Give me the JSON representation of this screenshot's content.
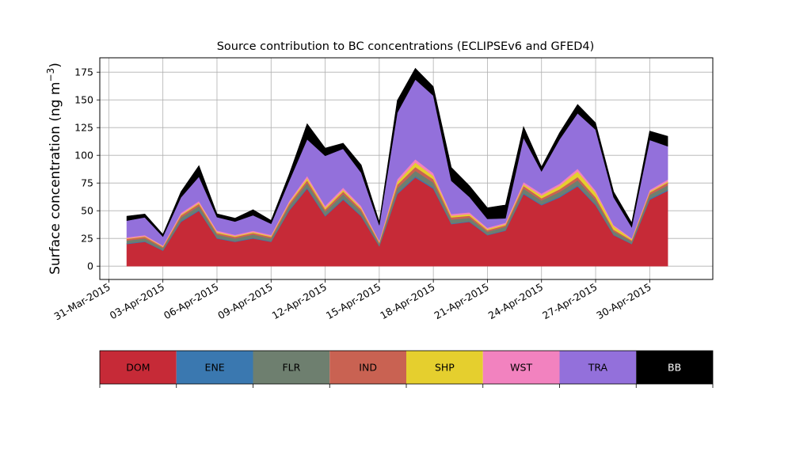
{
  "chart_data": {
    "type": "area",
    "stacked": true,
    "title": "Source contribution to BC concentrations (ECLIPSEv6 and GFED4)",
    "ylabel": "Surface concentration (ng m$^{-3}$)",
    "ylabel_main": "Surface concentration (ng m",
    "ylabel_sup": "−3",
    "ylabel_close": ")",
    "xlabel": "",
    "xlim": [
      "2015-03-30T12:00",
      "2015-05-03T12:00"
    ],
    "ylim": [
      -12,
      188
    ],
    "grid": true,
    "x_ticks": [
      "31-Mar-2015",
      "03-Apr-2015",
      "06-Apr-2015",
      "09-Apr-2015",
      "12-Apr-2015",
      "15-Apr-2015",
      "18-Apr-2015",
      "21-Apr-2015",
      "24-Apr-2015",
      "27-Apr-2015",
      "30-Apr-2015"
    ],
    "y_ticks": [
      "0",
      "25",
      "50",
      "75",
      "100",
      "125",
      "150",
      "175"
    ],
    "y_tick_values": [
      0,
      25,
      50,
      75,
      100,
      125,
      150,
      175
    ],
    "x": [
      "2015-04-01",
      "2015-04-02",
      "2015-04-03",
      "2015-04-04",
      "2015-04-05",
      "2015-04-06",
      "2015-04-07",
      "2015-04-08",
      "2015-04-09",
      "2015-04-10",
      "2015-04-11",
      "2015-04-12",
      "2015-04-13",
      "2015-04-14",
      "2015-04-15",
      "2015-04-16",
      "2015-04-17",
      "2015-04-18",
      "2015-04-19",
      "2015-04-20",
      "2015-04-21",
      "2015-04-22",
      "2015-04-23",
      "2015-04-24",
      "2015-04-25",
      "2015-04-26",
      "2015-04-27",
      "2015-04-28",
      "2015-04-29",
      "2015-04-30",
      "2015-05-01"
    ],
    "series": [
      {
        "name": "DOM",
        "color": "#c62a37",
        "values": [
          20,
          22,
          14,
          40,
          50,
          25,
          22,
          25,
          22,
          50,
          70,
          45,
          60,
          45,
          18,
          65,
          80,
          70,
          38,
          40,
          28,
          32,
          65,
          55,
          62,
          72,
          55,
          28,
          20,
          60,
          68
        ]
      },
      {
        "name": "ENE",
        "color": "#3a78b0",
        "values": [
          0.6,
          0.6,
          0.4,
          0.8,
          0.8,
          0.5,
          0.5,
          0.5,
          0.5,
          0.8,
          1.0,
          0.8,
          0.9,
          0.8,
          0.4,
          1.0,
          1.0,
          1.0,
          0.6,
          0.6,
          0.5,
          0.5,
          0.9,
          0.8,
          0.9,
          1.0,
          0.8,
          0.5,
          0.4,
          0.9,
          0.9
        ]
      },
      {
        "name": "FLR",
        "color": "#6e7f6f",
        "values": [
          2.5,
          2.5,
          2.0,
          3.0,
          3.5,
          3.0,
          2.5,
          3.0,
          2.5,
          3.5,
          4.0,
          3.5,
          4.0,
          3.5,
          2.0,
          4.5,
          5.0,
          4.5,
          3.5,
          3.0,
          2.5,
          3.0,
          4.0,
          3.5,
          4.0,
          4.5,
          4.0,
          3.0,
          2.0,
          3.5,
          4.0
        ]
      },
      {
        "name": "IND",
        "color": "#c96252",
        "values": [
          1.5,
          1.5,
          1.0,
          2.0,
          2.0,
          1.5,
          1.5,
          1.5,
          1.5,
          2.0,
          2.5,
          2.0,
          2.5,
          2.0,
          1.0,
          3.0,
          3.5,
          3.0,
          2.0,
          2.0,
          1.5,
          1.5,
          2.5,
          2.0,
          2.5,
          3.0,
          2.5,
          1.5,
          1.0,
          2.0,
          2.5
        ]
      },
      {
        "name": "SHP",
        "color": "#e5cf2e",
        "values": [
          0.5,
          0.5,
          0.5,
          0.8,
          1.0,
          1.0,
          0.8,
          0.8,
          0.8,
          1.0,
          2.0,
          1.5,
          1.5,
          1.2,
          0.8,
          2.5,
          4.0,
          3.0,
          1.5,
          1.5,
          1.0,
          1.0,
          1.5,
          2.5,
          3.0,
          5.0,
          4.0,
          3.0,
          1.0,
          1.0,
          1.0
        ]
      },
      {
        "name": "WST",
        "color": "#f282bf",
        "values": [
          1.0,
          1.0,
          0.8,
          1.5,
          1.5,
          1.2,
          1.0,
          1.2,
          1.0,
          1.5,
          2.0,
          1.8,
          2.0,
          1.8,
          0.8,
          2.5,
          3.0,
          2.5,
          1.5,
          1.5,
          1.2,
          1.2,
          2.0,
          1.8,
          2.0,
          2.5,
          2.0,
          1.2,
          0.8,
          1.5,
          1.8
        ]
      },
      {
        "name": "TRA",
        "color": "#9370db",
        "values": [
          15,
          16,
          8,
          14,
          22,
          12,
          12,
          14,
          10,
          18,
          33,
          45,
          35,
          30,
          14,
          60,
          72,
          70,
          30,
          14,
          8,
          4,
          40,
          20,
          40,
          50,
          55,
          25,
          10,
          45,
          30
        ]
      },
      {
        "name": "BB",
        "color": "#000000",
        "values": [
          4,
          3,
          2,
          5,
          10,
          3,
          3,
          5,
          3,
          6,
          14,
          7,
          5,
          7,
          3,
          11,
          10,
          8,
          12,
          10,
          10,
          12,
          10,
          4,
          6,
          8,
          6,
          5,
          4,
          8,
          9
        ]
      }
    ],
    "legend_placement": "bottom",
    "legend_text_colors": [
      "#000000",
      "#000000",
      "#000000",
      "#000000",
      "#000000",
      "#000000",
      "#000000",
      "#ffffff"
    ]
  }
}
